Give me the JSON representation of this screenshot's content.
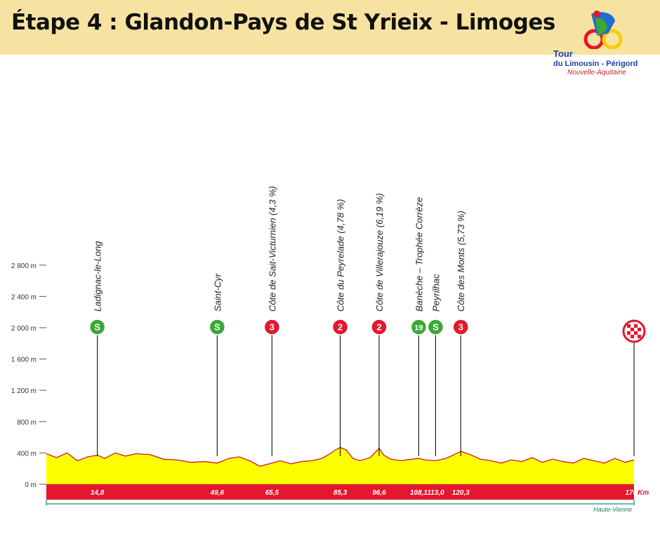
{
  "header": {
    "title": "Étape 4 : Glandon-Pays de St Yrieix - Limoges"
  },
  "logo": {
    "line1": "Tour",
    "line2": "du Limousin - Périgord",
    "line3": "Nouvelle-Aquitaine"
  },
  "colors": {
    "header_bg": "#f7e3a1",
    "profile_fill": "#ffff00",
    "km_band": "#e3172d",
    "sprint_marker": "#3aa935",
    "climb_marker": "#e3172d",
    "region_line": "#3aa58c"
  },
  "chart_data": {
    "type": "area",
    "title": "",
    "ylabel": "",
    "xlabel": "Km",
    "xlim": [
      0,
      170.6
    ],
    "ylim": [
      0,
      2800
    ],
    "y_ticks": [
      {
        "value": 0,
        "label": "0 m"
      },
      {
        "value": 400,
        "label": "400 m"
      },
      {
        "value": 800,
        "label": "800 m"
      },
      {
        "value": 1200,
        "label": "1 200 m"
      },
      {
        "value": 1600,
        "label": "1 600 m"
      },
      {
        "value": 2000,
        "label": "2 000 m"
      },
      {
        "value": 2400,
        "label": "2 400 m"
      },
      {
        "value": 2800,
        "label": "2 800 m"
      }
    ],
    "series": [
      {
        "x": [
          0,
          3,
          6,
          9,
          12,
          14.8,
          17,
          20,
          23,
          26,
          30,
          34,
          38,
          42,
          46,
          49.6,
          53,
          56,
          59,
          62,
          65.5,
          68,
          71,
          74,
          77,
          80,
          82,
          84,
          85.3,
          87,
          89,
          91,
          94,
          96.6,
          98,
          100,
          103,
          106,
          108.1,
          110,
          113,
          116,
          118,
          120.3,
          123,
          126,
          129,
          132,
          135,
          138,
          141,
          144,
          147,
          150,
          153,
          156,
          159,
          162,
          165,
          168,
          170.6
        ],
        "y": [
          390,
          340,
          400,
          300,
          350,
          370,
          330,
          400,
          360,
          390,
          380,
          320,
          310,
          280,
          290,
          270,
          330,
          350,
          300,
          230,
          270,
          300,
          260,
          290,
          300,
          330,
          380,
          440,
          470,
          440,
          330,
          300,
          340,
          460,
          370,
          320,
          300,
          320,
          330,
          310,
          300,
          330,
          370,
          420,
          380,
          320,
          300,
          270,
          310,
          290,
          340,
          280,
          320,
          290,
          270,
          330,
          300,
          270,
          330,
          280,
          310
        ]
      }
    ],
    "x_labels": [
      "14,8",
      "49,6",
      "65,5",
      "85,3",
      "96,6",
      "108,1",
      "113,0",
      "120,3",
      "170,6"
    ],
    "unit_label": "Km",
    "points": [
      {
        "km": 14.8,
        "name": "Ladignac-le-Long",
        "badge": "S",
        "kind": "sprint"
      },
      {
        "km": 49.6,
        "name": "Saint-Cyr",
        "badge": "S",
        "kind": "sprint"
      },
      {
        "km": 65.5,
        "name": "Côte de Sait-Victurnien (4,3 %)",
        "badge": "3",
        "kind": "climb"
      },
      {
        "km": 85.3,
        "name": "Côte du Peyrelade (4,78 %)",
        "badge": "2",
        "kind": "climb"
      },
      {
        "km": 96.6,
        "name": "Côte de Villerajouze (6,19 %)",
        "badge": "2",
        "kind": "climb"
      },
      {
        "km": 108.1,
        "name": "Banèche – Trophée Corrèze",
        "badge": "19",
        "kind": "sprint"
      },
      {
        "km": 113.0,
        "name": "Peyrilhac",
        "badge": "S",
        "kind": "sprint"
      },
      {
        "km": 120.3,
        "name": "Côte des Monts (5,73 %)",
        "badge": "3",
        "kind": "climb"
      },
      {
        "km": 170.6,
        "name": "",
        "badge": "",
        "kind": "finish"
      }
    ],
    "region_label": "Haute-Vienne",
    "grid": false
  }
}
